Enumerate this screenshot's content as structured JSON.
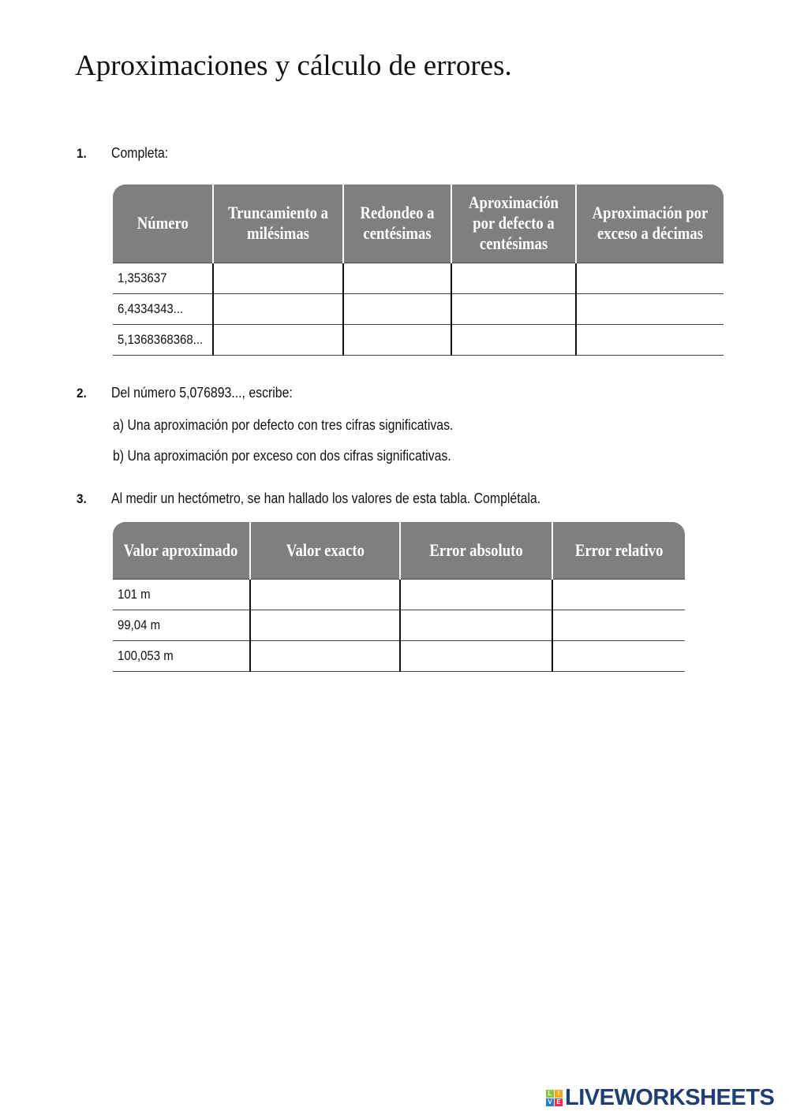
{
  "title": "Aproximaciones y cálculo de errores.",
  "q1": {
    "number": "1.",
    "text": "Completa:",
    "headers": [
      "Número",
      "Truncamiento a milésimas",
      "Redondeo a centésimas",
      "Aproximación por defecto a centésimas",
      "Aproximación por exceso a décimas"
    ],
    "rows": [
      "1,353637",
      "6,4334343...",
      "5,1368368368..."
    ]
  },
  "q2": {
    "number": "2.",
    "text": "Del número 5,076893..., escribe:",
    "a": "a)  Una aproximación por defecto con tres cifras significativas.",
    "b": "b)  Una aproximación por exceso con dos cifras significativas."
  },
  "q3": {
    "number": "3.",
    "text": "Al medir un hectómetro, se han hallado los valores de esta tabla. Complétala.",
    "headers": [
      "Valor aproximado",
      "Valor exacto",
      "Error absoluto",
      "Error relativo"
    ],
    "rows": [
      "101 m",
      "99,04 m",
      "100,053 m"
    ]
  },
  "logo": {
    "text": "LIVEWORKSHEETS",
    "letters": [
      "L",
      "I",
      "V",
      "E"
    ],
    "colors": [
      "#8cc63f",
      "#f7a81b",
      "#2a7fc1",
      "#e5304b"
    ]
  },
  "colors": {
    "header_bg": "#7f7f7f"
  }
}
